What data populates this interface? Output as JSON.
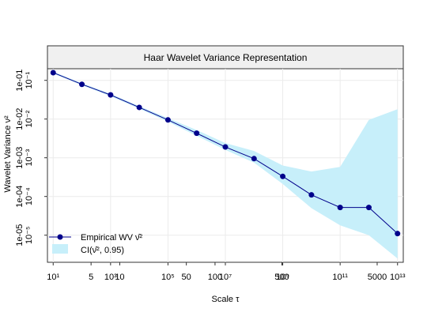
{
  "chart_data": {
    "type": "line",
    "title": "Haar Wavelet Variance Representation",
    "xlabel": "Scale τ",
    "ylabel": "Wavelet Variance ν²",
    "x_scale": "log2",
    "y_scale": "log10",
    "xlim_log2": [
      0.8,
      13.2
    ],
    "ylim_log10": [
      -5.7,
      -0.7
    ],
    "grid": true,
    "legend_position": "bottom-left",
    "x_tick_labels": [
      {
        "log2": 1,
        "text": "10¹"
      },
      {
        "log2": 2.32,
        "text": "5"
      },
      {
        "log2": 3,
        "text": "10³"
      },
      {
        "log2": 3.32,
        "text": "10"
      },
      {
        "log2": 5,
        "text": "10⁵"
      },
      {
        "log2": 5.64,
        "text": "50"
      },
      {
        "log2": 6.64,
        "text": "100"
      },
      {
        "log2": 7,
        "text": "10⁷"
      },
      {
        "log2": 8.97,
        "text": "500"
      },
      {
        "log2": 9,
        "text": "10⁹"
      },
      {
        "log2": 11,
        "text": "10¹¹"
      },
      {
        "log2": 12.29,
        "text": "5000"
      },
      {
        "log2": 13,
        "text": "10¹³"
      }
    ],
    "y_tick_labels": [
      {
        "log10": -1,
        "text": "10⁻¹",
        "alt": "1e-01"
      },
      {
        "log10": -2,
        "text": "10⁻²",
        "alt": "1e-02"
      },
      {
        "log10": -3,
        "text": "10⁻³",
        "alt": "1e-03"
      },
      {
        "log10": -4,
        "text": "10⁻⁴",
        "alt": "1e-04"
      },
      {
        "log10": -5,
        "text": "10⁻⁵",
        "alt": "1e-05"
      }
    ],
    "series": [
      {
        "name": "Empirical WV ν̂²",
        "color": "#00008b",
        "scales": [
          2,
          4,
          8,
          16,
          32,
          64,
          128,
          256,
          512,
          1024,
          2048,
          4096,
          8192
        ],
        "values": [
          0.158,
          0.079,
          0.042,
          0.02,
          0.0095,
          0.0043,
          0.0019,
          0.00095,
          0.00033,
          0.00011,
          5.2e-05,
          5.2e-05,
          1.1e-05
        ]
      }
    ],
    "confidence_interval": {
      "name": "CI(ν̂², 0.95)",
      "color": "#c7effa",
      "lower": [
        0.15,
        0.075,
        0.039,
        0.0185,
        0.0085,
        0.0037,
        0.0016,
        0.00075,
        0.00021,
        5e-05,
        1.8e-05,
        1e-05,
        2.5e-06
      ],
      "upper": [
        0.167,
        0.084,
        0.045,
        0.0215,
        0.0106,
        0.0052,
        0.0024,
        0.0015,
        0.00063,
        0.00044,
        0.00058,
        0.0095,
        0.018
      ]
    }
  }
}
